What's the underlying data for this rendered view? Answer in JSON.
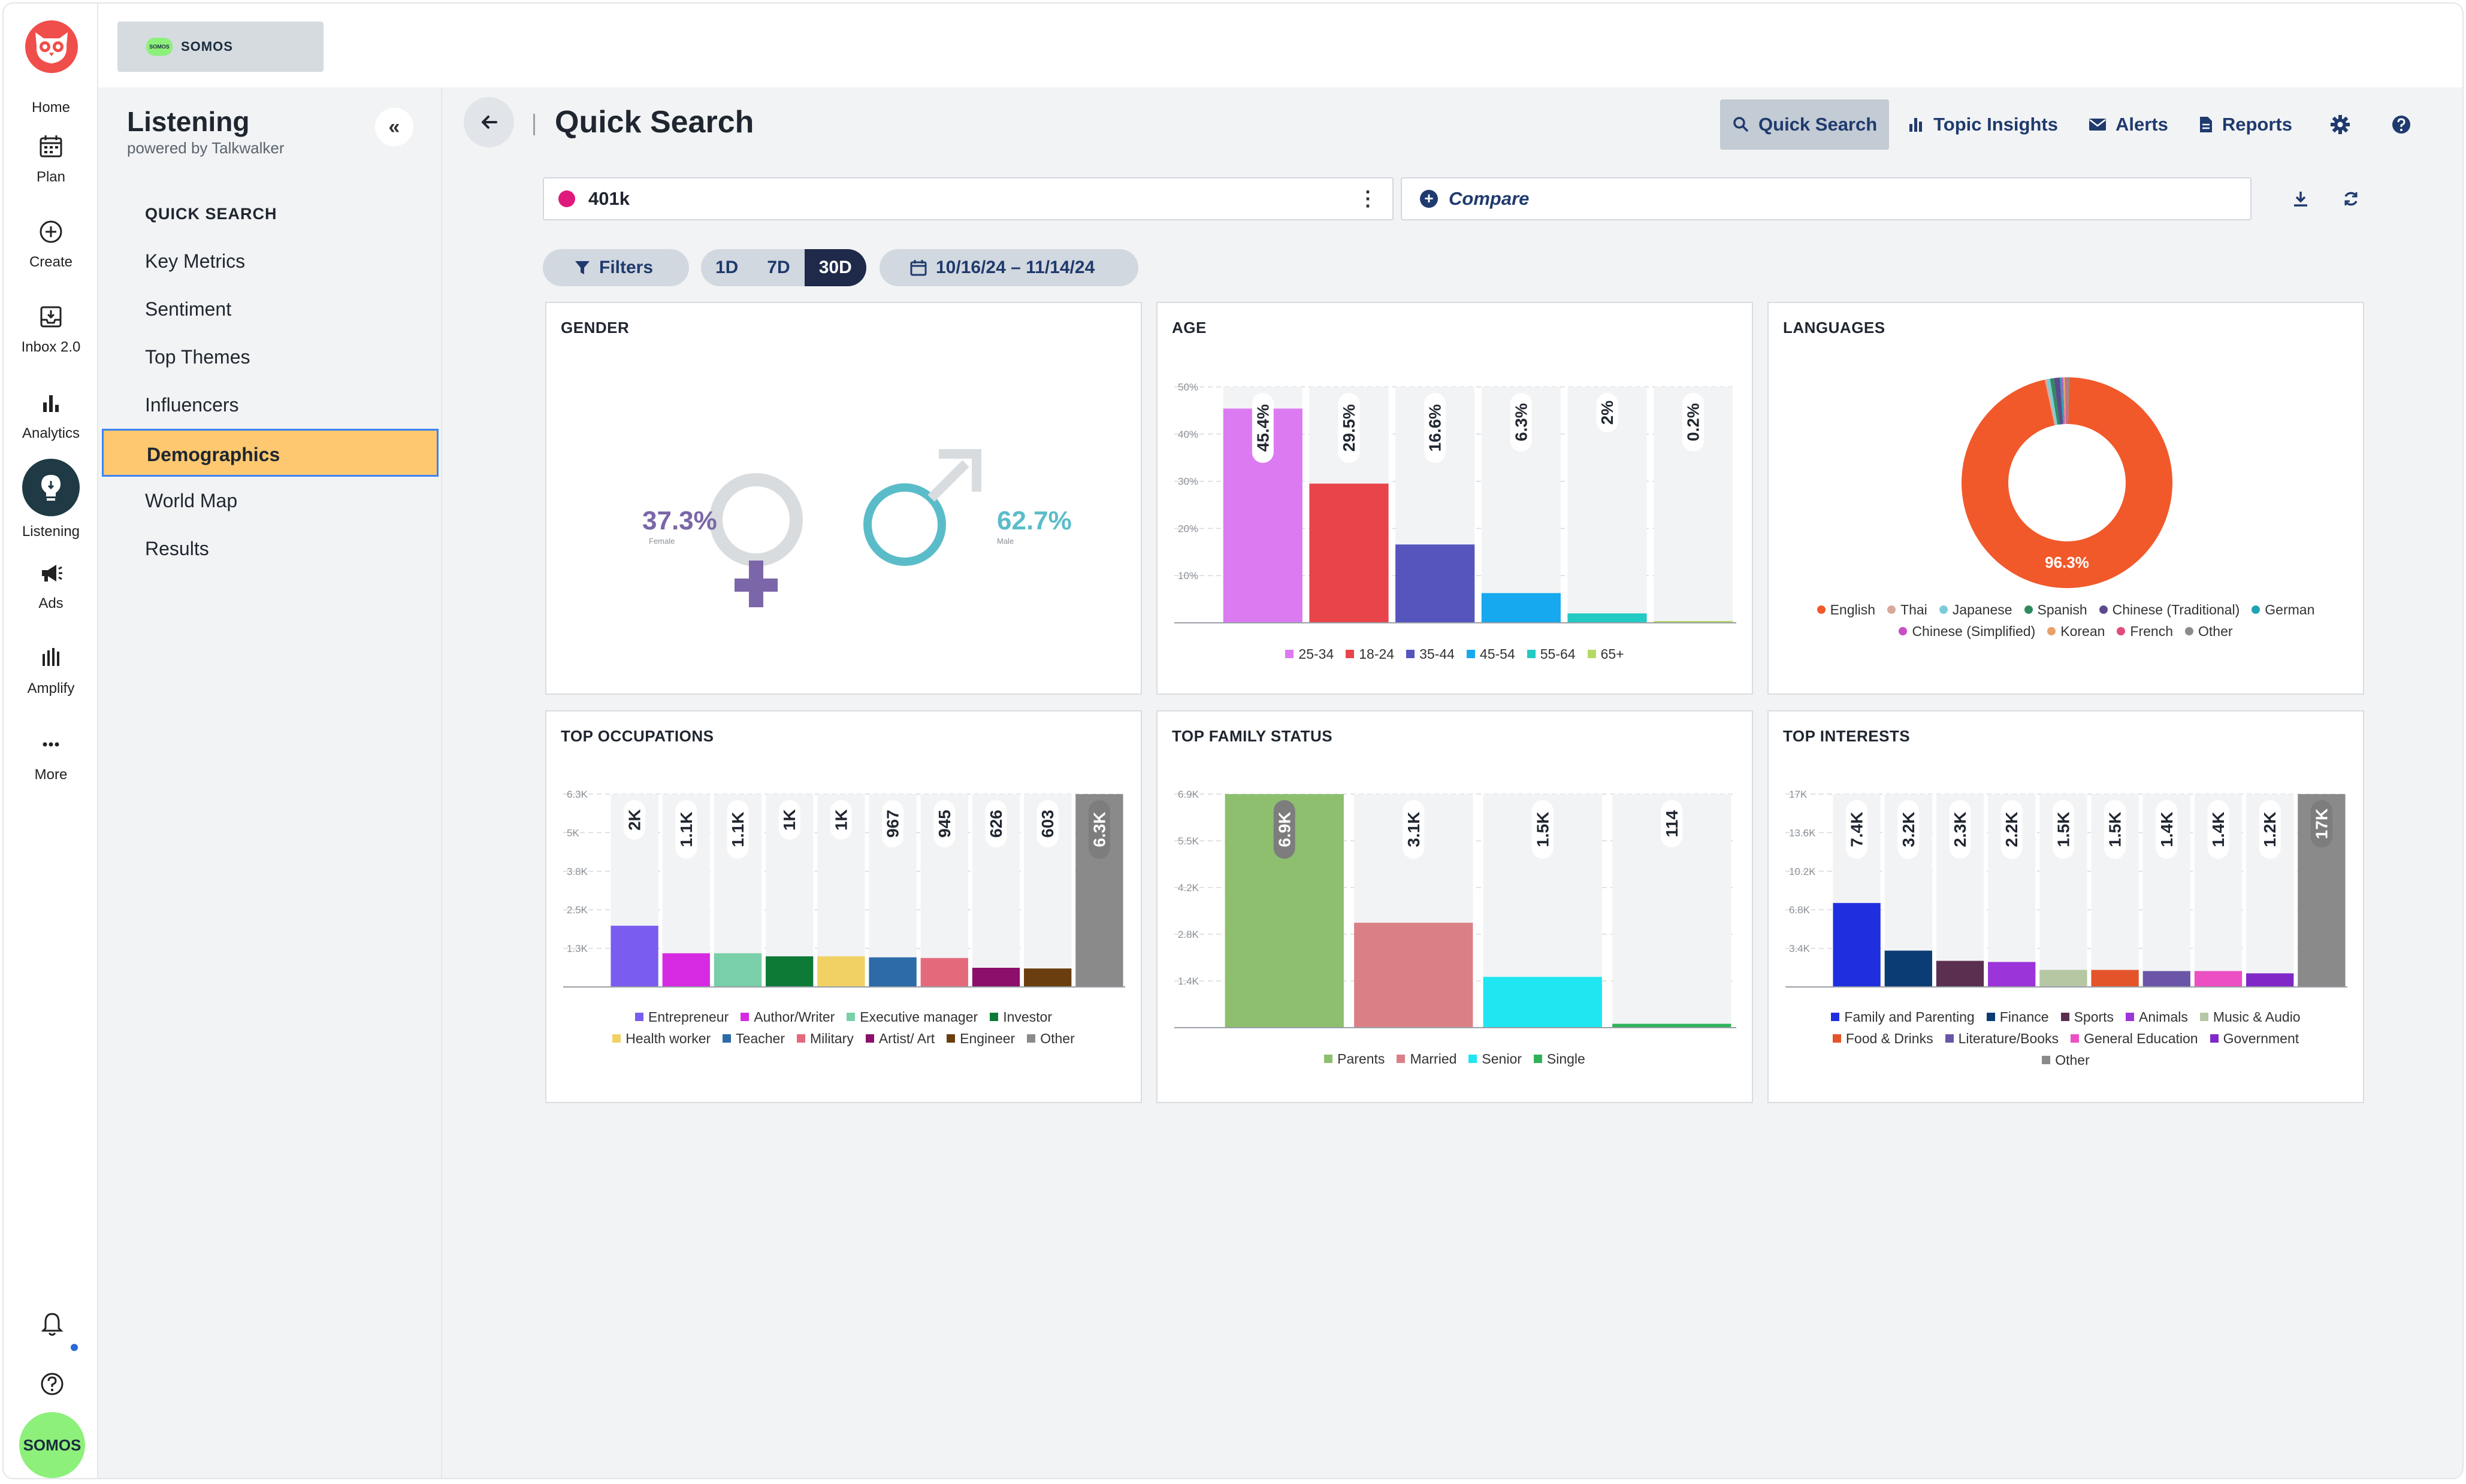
{
  "rail": {
    "items": [
      {
        "label": "Home",
        "icon": "owl-logo"
      },
      {
        "label": "Plan",
        "icon": "calendar-icon"
      },
      {
        "label": "Create",
        "icon": "plus-circle-icon"
      },
      {
        "label": "Inbox 2.0",
        "icon": "inbox-icon"
      },
      {
        "label": "Analytics",
        "icon": "bar-chart-icon"
      },
      {
        "label": "Listening",
        "icon": "lightbulb-icon"
      },
      {
        "label": "Ads",
        "icon": "megaphone-icon"
      },
      {
        "label": "Amplify",
        "icon": "amplify-icon"
      },
      {
        "label": "More",
        "icon": "ellipsis-icon"
      }
    ],
    "avatar": "SOMOS"
  },
  "brand": {
    "badge": "SOMOS",
    "name": "SOMOS"
  },
  "nav": {
    "title": "Listening",
    "subtitle": "powered by Talkwalker",
    "collapse": "«",
    "section": "QUICK SEARCH",
    "items": [
      {
        "label": "Key Metrics"
      },
      {
        "label": "Sentiment"
      },
      {
        "label": "Top Themes"
      },
      {
        "label": "Influencers"
      },
      {
        "label": "Demographics",
        "active": true
      },
      {
        "label": "World Map"
      },
      {
        "label": "Results"
      }
    ]
  },
  "header": {
    "title": "Quick Search",
    "tools": [
      "Quick Search",
      "Topic Insights",
      "Alerts",
      "Reports"
    ]
  },
  "query": {
    "value": "401k",
    "compare_placeholder": "Compare",
    "dot_color": "#e0197d"
  },
  "filters": {
    "filters_label": "Filters",
    "ranges": [
      "1D",
      "7D",
      "30D"
    ],
    "selected_range": "30D",
    "date_range": "10/16/24 – 11/14/24"
  },
  "cards": {
    "gender": "GENDER",
    "age": "AGE",
    "languages": "LANGUAGES",
    "occupations": "TOP OCCUPATIONS",
    "family": "TOP FAMILY STATUS",
    "interests": "TOP INTERESTS"
  },
  "chart_data": [
    {
      "id": "gender",
      "type": "pie",
      "categories": [
        "Female",
        "Male"
      ],
      "values": [
        37.3,
        62.7
      ],
      "labels": [
        "37.3%",
        "62.7%"
      ],
      "colors": [
        "#7a66a8",
        "#5bbcc9"
      ]
    },
    {
      "id": "age",
      "type": "bar",
      "categories": [
        "25-34",
        "18-24",
        "35-44",
        "45-54",
        "55-64",
        "65+"
      ],
      "values": [
        45.4,
        29.5,
        16.6,
        6.3,
        2,
        0.2
      ],
      "labels": [
        "45.4%",
        "29.5%",
        "16.6%",
        "6.3%",
        "2%",
        "0.2%"
      ],
      "colors": [
        "#dc7af2",
        "#e8444a",
        "#5555bd",
        "#17a9ef",
        "#23c9c3",
        "#b4d965"
      ],
      "yticks": [
        "50%",
        "40%",
        "30%",
        "20%",
        "10%"
      ],
      "ylim": [
        0,
        50
      ]
    },
    {
      "id": "languages",
      "type": "pie",
      "categories": [
        "English",
        "Thai",
        "Japanese",
        "Spanish",
        "Chinese (Traditional)",
        "German",
        "Chinese (Simplified)",
        "Korean",
        "French",
        "Other"
      ],
      "values": [
        96.3,
        0.3,
        0.5,
        0.6,
        0.9,
        0.3,
        0.2,
        0.3,
        0.2,
        0.4
      ],
      "center_label": "96.3%",
      "colors": [
        "#f1592a",
        "#d9a89a",
        "#7ccbd9",
        "#2f8b5f",
        "#5d4a8c",
        "#1fa3b5",
        "#c84fc6",
        "#e8a06a",
        "#e24c7a",
        "#8c8c8c"
      ]
    },
    {
      "id": "occupations",
      "type": "bar",
      "categories": [
        "Entrepreneur",
        "Author/Writer",
        "Executive manager",
        "Investor",
        "Health worker",
        "Teacher",
        "Military",
        "Artist/ Art",
        "Engineer",
        "Other"
      ],
      "values": [
        2000,
        1100,
        1100,
        1000,
        1000,
        967,
        945,
        626,
        603,
        6300
      ],
      "labels": [
        "2K",
        "1.1K",
        "1.1K",
        "1K",
        "1K",
        "967",
        "945",
        "626",
        "603",
        "6.3K"
      ],
      "colors": [
        "#7b5cf0",
        "#d62be3",
        "#79cfa8",
        "#0d7a36",
        "#f1d164",
        "#2d6aa8",
        "#e46a7b",
        "#8b0f6b",
        "#6a3e0e",
        "#8a8a8a"
      ],
      "yticks": [
        "6.3K",
        "5K",
        "3.8K",
        "2.5K",
        "1.3K"
      ],
      "ylim": [
        0,
        6300
      ]
    },
    {
      "id": "family",
      "type": "bar",
      "categories": [
        "Parents",
        "Married",
        "Senior",
        "Single"
      ],
      "values": [
        6900,
        3100,
        1500,
        114
      ],
      "labels": [
        "6.9K",
        "3.1K",
        "1.5K",
        "114"
      ],
      "colors": [
        "#8dbf6f",
        "#db7f86",
        "#1fe6f0",
        "#2fb35a"
      ],
      "yticks": [
        "6.9K",
        "5.5K",
        "4.2K",
        "2.8K",
        "1.4K"
      ],
      "ylim": [
        0,
        6900
      ]
    },
    {
      "id": "interests",
      "type": "bar",
      "categories": [
        "Family and Parenting",
        "Finance",
        "Sports",
        "Animals",
        "Music & Audio",
        "Food & Drinks",
        "Literature/Books",
        "General Education",
        "Government",
        "Other"
      ],
      "values": [
        7400,
        3200,
        2300,
        2200,
        1500,
        1500,
        1400,
        1400,
        1200,
        17000
      ],
      "labels": [
        "7.4K",
        "3.2K",
        "2.3K",
        "2.2K",
        "1.5K",
        "1.5K",
        "1.4K",
        "1.4K",
        "1.2K",
        "17K"
      ],
      "colors": [
        "#1f2fe0",
        "#0c3c74",
        "#5a2f4f",
        "#9c35d9",
        "#b6c7a3",
        "#e4542a",
        "#6a55a8",
        "#ec4fc3",
        "#7f28c7",
        "#8a8a8a"
      ],
      "yticks": [
        "17K",
        "13.6K",
        "10.2K",
        "6.8K",
        "3.4K"
      ],
      "ylim": [
        0,
        17000
      ]
    }
  ]
}
